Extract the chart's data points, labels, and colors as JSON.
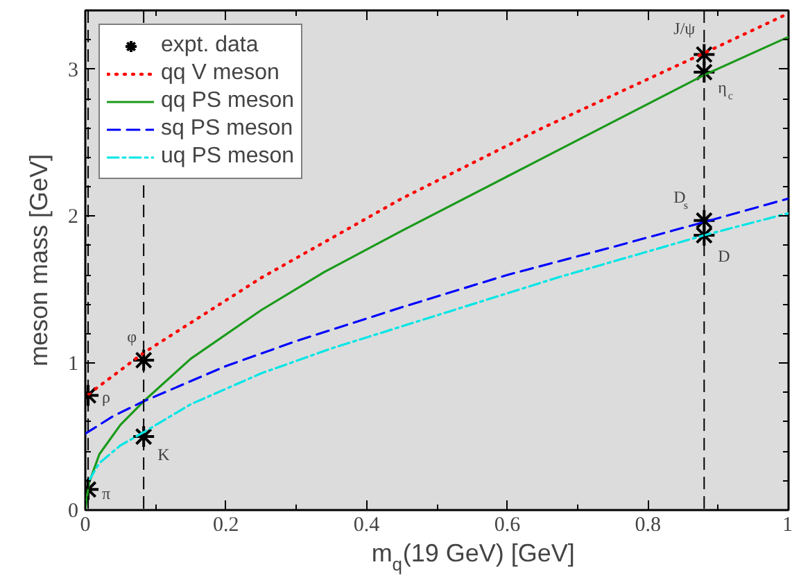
{
  "chart_data": {
    "type": "line",
    "xlabel": "m$_{q}$(19 GeV)  [GeV]",
    "ylabel": "meson mass [GeV]",
    "xlim": [
      0,
      1
    ],
    "ylim": [
      0,
      3.4
    ],
    "xticks": [
      0,
      0.2,
      0.4,
      0.6,
      0.8,
      1
    ],
    "yticks": [
      0,
      1,
      2,
      3
    ],
    "grid": false,
    "legend": "top left",
    "series": [
      {
        "name": "expt. data",
        "type": "scatter",
        "marker": "cross",
        "color": "#000000",
        "x": [
          0.004,
          0.004,
          0.083,
          0.083,
          0.88,
          0.88,
          0.88,
          0.88
        ],
        "values": [
          0.14,
          0.78,
          1.02,
          0.5,
          3.1,
          2.98,
          1.97,
          1.87
        ]
      },
      {
        "name": "qq V meson",
        "color": "#ff0000",
        "line_style": "dotted",
        "x": [
          0.005,
          0.083,
          0.25,
          0.45,
          0.65,
          0.88,
          1.0
        ],
        "values": [
          0.79,
          1.07,
          1.58,
          2.12,
          2.6,
          3.11,
          3.38
        ]
      },
      {
        "name": "qq PS meson",
        "color": "#1a9a1a",
        "line_style": "solid",
        "x": [
          0,
          0.005,
          0.02,
          0.05,
          0.083,
          0.15,
          0.25,
          0.34,
          0.45,
          0.6,
          0.75,
          0.88,
          1.0
        ],
        "values": [
          0,
          0.18,
          0.38,
          0.58,
          0.74,
          1.03,
          1.36,
          1.62,
          1.9,
          2.27,
          2.64,
          2.96,
          3.22
        ]
      },
      {
        "name": "sq PS meson",
        "color": "#0000ff",
        "line_style": "dashed",
        "x": [
          0,
          0.04,
          0.083,
          0.2,
          0.3,
          0.45,
          0.6,
          0.75,
          0.88,
          1.0
        ],
        "values": [
          0.52,
          0.64,
          0.74,
          0.98,
          1.15,
          1.38,
          1.6,
          1.79,
          1.96,
          2.12
        ]
      },
      {
        "name": "uq PS meson",
        "color": "#00e5e5",
        "line_style": "dashdot",
        "x": [
          0.005,
          0.02,
          0.05,
          0.083,
          0.15,
          0.25,
          0.35,
          0.45,
          0.67,
          0.88,
          1.0
        ],
        "values": [
          0.2,
          0.32,
          0.44,
          0.53,
          0.72,
          0.93,
          1.1,
          1.25,
          1.58,
          1.87,
          2.02
        ]
      }
    ],
    "ref_lines": [
      {
        "axis": "x",
        "value": 0.004,
        "color": "#000000",
        "line_style": "dashed"
      },
      {
        "axis": "x",
        "value": 0.083,
        "color": "#000000",
        "line_style": "dashed"
      },
      {
        "axis": "x",
        "value": 0.88,
        "color": "#000000",
        "line_style": "dashed"
      }
    ],
    "annotations": [
      {
        "text": "π",
        "x": 0.004,
        "y": 0.14
      },
      {
        "text": "ρ",
        "x": 0.004,
        "y": 0.78
      },
      {
        "text": "φ",
        "x": 0.083,
        "y": 1.02
      },
      {
        "text": "K",
        "x": 0.083,
        "y": 0.5
      },
      {
        "text": "J/ψ",
        "x": 0.88,
        "y": 3.1
      },
      {
        "text": "η$_{c}$",
        "x": 0.88,
        "y": 2.98
      },
      {
        "text": "D$_{s}$",
        "x": 0.88,
        "y": 1.97
      },
      {
        "text": "D",
        "x": 0.88,
        "y": 1.87
      }
    ]
  }
}
